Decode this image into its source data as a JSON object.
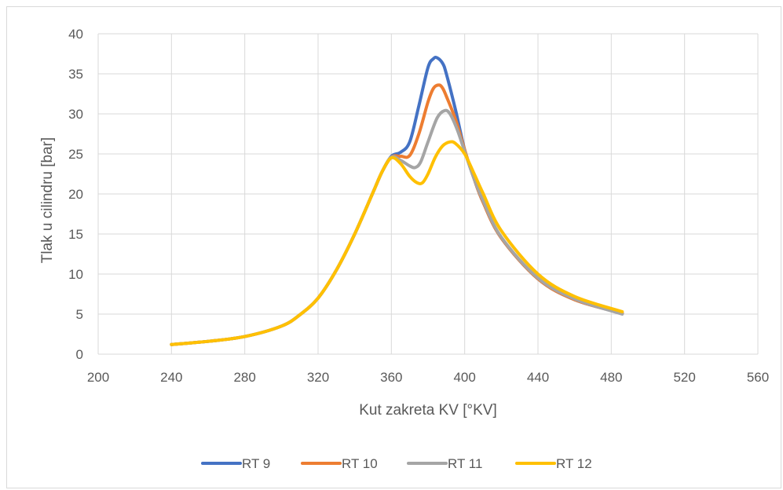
{
  "chart_data": {
    "type": "line",
    "title": "",
    "xlabel": "Kut zakreta KV [°KV]",
    "ylabel": "Tlak u cilindru [bar]",
    "xlim": [
      200,
      560
    ],
    "ylim": [
      0,
      40
    ],
    "xticks": [
      200,
      240,
      280,
      320,
      360,
      400,
      440,
      480,
      520,
      560
    ],
    "yticks": [
      0,
      5,
      10,
      15,
      20,
      25,
      30,
      35,
      40
    ],
    "grid": true,
    "legend_position": "bottom",
    "series": [
      {
        "name": "RT 9",
        "color": "#4472c4",
        "x": [
          240,
          260,
          280,
          300,
          310,
          320,
          330,
          340,
          350,
          355,
          360,
          365,
          370,
          375,
          380,
          383,
          385,
          388,
          390,
          395,
          400,
          405,
          410,
          420,
          440,
          460,
          486
        ],
        "y": [
          1.2,
          1.6,
          2.2,
          3.5,
          4.9,
          7.0,
          10.5,
          15.0,
          20.2,
          22.8,
          24.7,
          25.2,
          26.5,
          31.0,
          35.8,
          36.9,
          37.0,
          36.3,
          35.0,
          30.5,
          25.5,
          22.0,
          19.0,
          14.5,
          9.4,
          6.8,
          5.1
        ]
      },
      {
        "name": "RT 10",
        "color": "#ed7d31",
        "x": [
          240,
          260,
          280,
          300,
          310,
          320,
          330,
          340,
          350,
          355,
          360,
          365,
          370,
          375,
          380,
          383,
          386,
          388,
          390,
          395,
          400,
          405,
          410,
          420,
          440,
          460,
          486
        ],
        "y": [
          1.2,
          1.6,
          2.2,
          3.5,
          4.9,
          7.0,
          10.5,
          15.0,
          20.2,
          22.8,
          24.6,
          24.7,
          24.8,
          27.5,
          31.5,
          33.2,
          33.6,
          33.2,
          32.2,
          29.3,
          25.5,
          22.0,
          19.0,
          14.5,
          9.4,
          6.8,
          5.1
        ]
      },
      {
        "name": "RT 11",
        "color": "#a5a5a5",
        "x": [
          240,
          260,
          280,
          300,
          310,
          320,
          330,
          340,
          350,
          355,
          360,
          365,
          370,
          373,
          376,
          380,
          385,
          389,
          392,
          396,
          400,
          405,
          410,
          420,
          440,
          460,
          486
        ],
        "y": [
          1.2,
          1.6,
          2.2,
          3.5,
          4.9,
          7.0,
          10.5,
          15.0,
          20.2,
          22.8,
          24.6,
          24.2,
          23.5,
          23.3,
          24.0,
          26.5,
          29.5,
          30.4,
          30.0,
          28.0,
          25.3,
          22.0,
          19.2,
          14.6,
          9.5,
          6.9,
          5.0
        ]
      },
      {
        "name": "RT 12",
        "color": "#ffc000",
        "x": [
          240,
          260,
          280,
          300,
          310,
          320,
          330,
          340,
          350,
          355,
          360,
          365,
          370,
          374,
          377,
          380,
          384,
          388,
          392,
          395,
          400,
          405,
          410,
          420,
          440,
          460,
          486
        ],
        "y": [
          1.2,
          1.6,
          2.2,
          3.5,
          4.9,
          7.0,
          10.5,
          15.0,
          20.2,
          22.8,
          24.5,
          23.8,
          22.2,
          21.4,
          21.4,
          22.5,
          24.6,
          26.0,
          26.5,
          26.3,
          25.0,
          22.6,
          20.1,
          15.4,
          10.0,
          7.2,
          5.3
        ]
      }
    ]
  }
}
